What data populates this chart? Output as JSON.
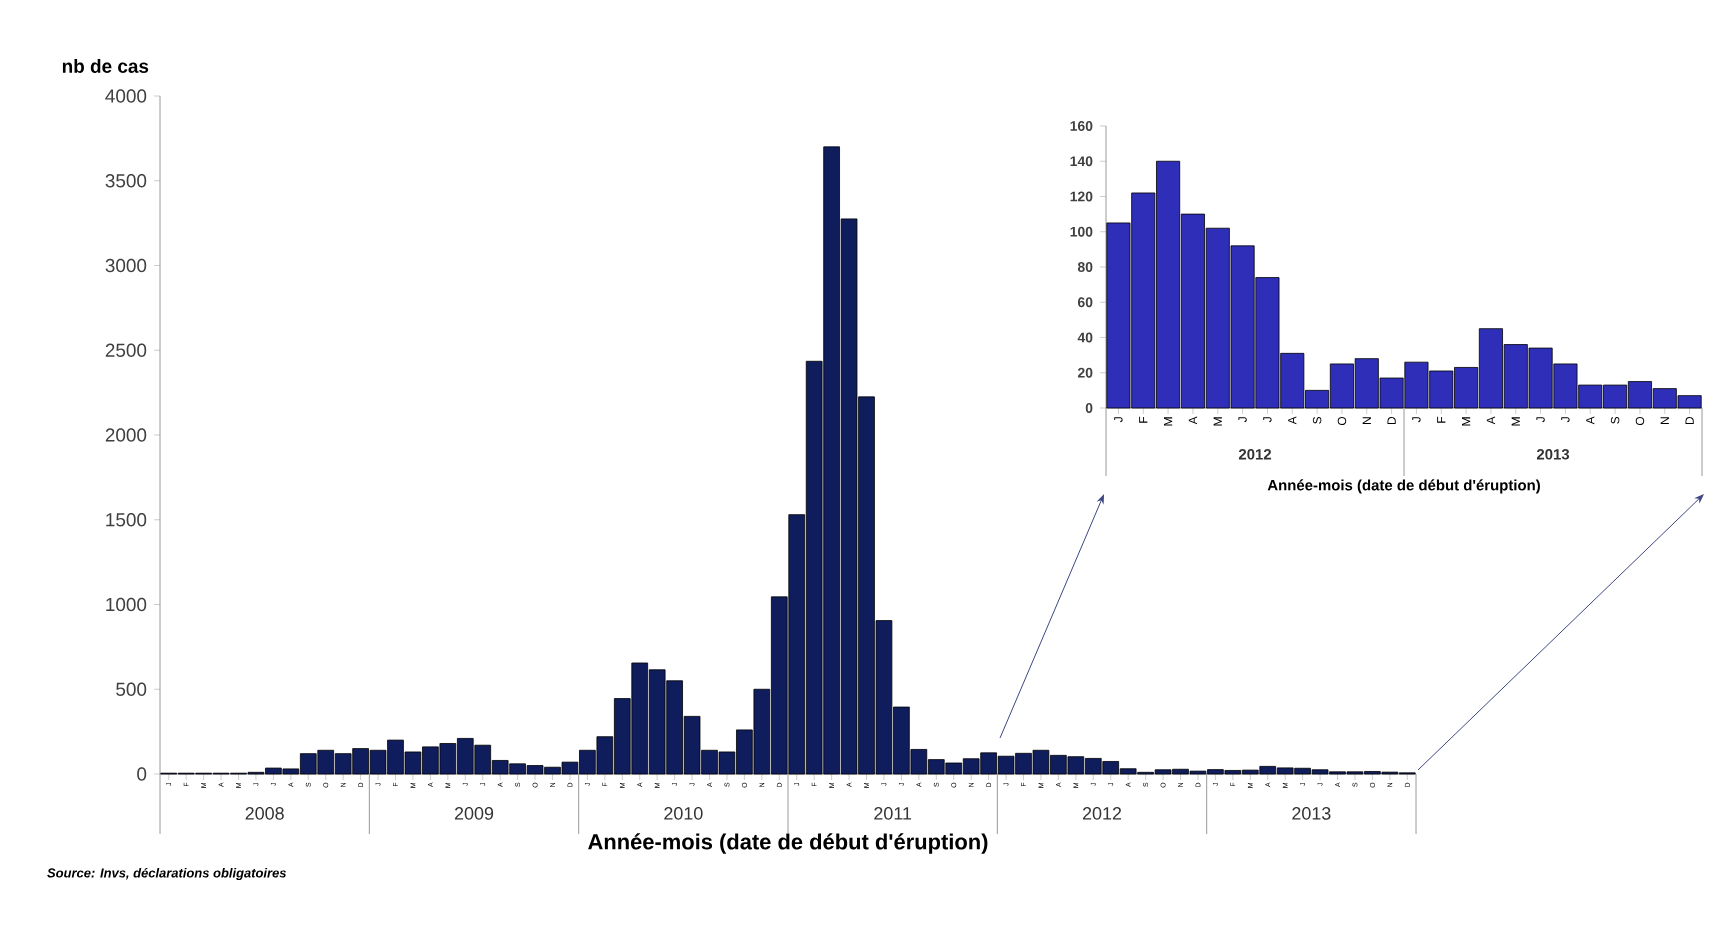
{
  "chart_data": [
    {
      "type": "bar",
      "ylabel": "nb de cas",
      "xlabel": "Année-mois (date de début d'éruption)",
      "categories": [
        "J",
        "F",
        "M",
        "A",
        "M",
        "J",
        "J",
        "A",
        "S",
        "O",
        "N",
        "D",
        "J",
        "F",
        "M",
        "A",
        "M",
        "J",
        "J",
        "A",
        "S",
        "O",
        "N",
        "D",
        "J",
        "F",
        "M",
        "A",
        "M",
        "J",
        "J",
        "A",
        "S",
        "O",
        "N",
        "D",
        "J",
        "F",
        "M",
        "A",
        "M",
        "J",
        "J",
        "A",
        "S",
        "O",
        "N",
        "D",
        "J",
        "F",
        "M",
        "A",
        "M",
        "J",
        "J",
        "A",
        "S",
        "O",
        "N",
        "D",
        "J",
        "F",
        "M",
        "A",
        "M",
        "J",
        "J",
        "A",
        "S",
        "O",
        "N",
        "D"
      ],
      "values": [
        5,
        5,
        5,
        5,
        5,
        10,
        35,
        30,
        120,
        140,
        120,
        150,
        140,
        200,
        130,
        160,
        180,
        210,
        170,
        80,
        60,
        50,
        40,
        70,
        140,
        220,
        445,
        655,
        615,
        550,
        340,
        140,
        130,
        260,
        500,
        1045,
        1530,
        2435,
        3700,
        3275,
        2225,
        905,
        395,
        145,
        85,
        65,
        90,
        125,
        105,
        122,
        140,
        110,
        102,
        92,
        74,
        31,
        10,
        25,
        28,
        17,
        26,
        21,
        23,
        45,
        36,
        34,
        25,
        13,
        13,
        15,
        11,
        7
      ],
      "color": "#101d5c",
      "ylim": [
        0,
        4000
      ],
      "yticks": [
        0,
        500,
        1000,
        1500,
        2000,
        2500,
        3000,
        3500,
        4000
      ],
      "annotations": [
        "2008",
        "2009",
        "2010",
        "2011",
        "2012",
        "2013",
        "Source: Invs, déclarations obligatoires"
      ]
    },
    {
      "type": "bar",
      "xlabel": "Année-mois (date de début d'éruption)",
      "categories": [
        "J",
        "F",
        "M",
        "A",
        "M",
        "J",
        "J",
        "A",
        "S",
        "O",
        "N",
        "D",
        "J",
        "F",
        "M",
        "A",
        "M",
        "J",
        "J",
        "A",
        "S",
        "O",
        "N",
        "D"
      ],
      "values": [
        105,
        122,
        140,
        110,
        102,
        92,
        74,
        31,
        10,
        25,
        28,
        17,
        26,
        21,
        23,
        45,
        36,
        34,
        25,
        13,
        13,
        15,
        11,
        7
      ],
      "color": "#2e2eb8",
      "ylim": [
        0,
        160
      ],
      "yticks": [
        0,
        20,
        40,
        60,
        80,
        100,
        120,
        140,
        160
      ],
      "annotations": [
        "2012",
        "2013"
      ]
    }
  ]
}
